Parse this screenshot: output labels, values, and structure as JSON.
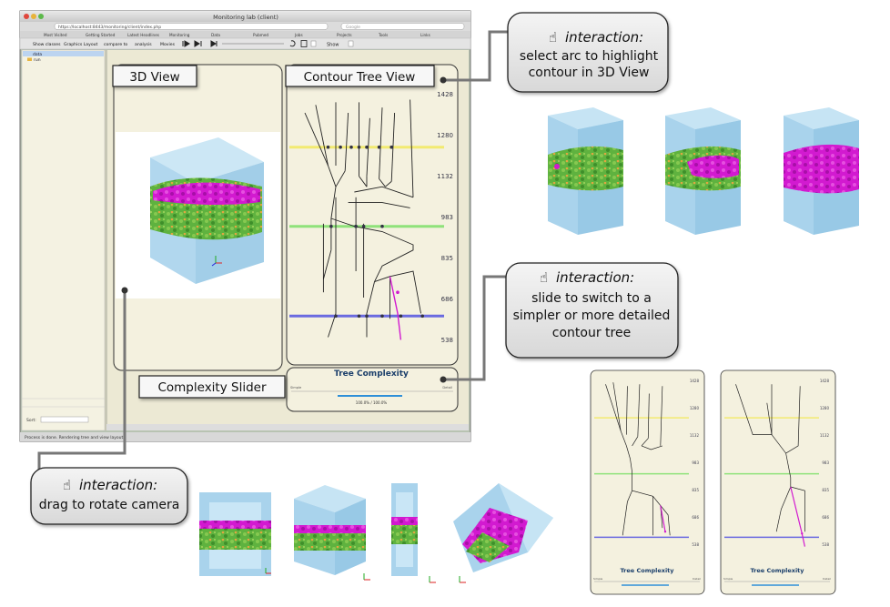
{
  "window": {
    "title": "Monitoring lab (client)",
    "url": "https://localhost:8443/monitoring/client/index.php",
    "search_placeholder": "Google",
    "bookmarks": [
      "Most Visited",
      "Getting Started",
      "Latest Headlines",
      "Monitoring",
      "Data",
      "Pubmed",
      "Jobs",
      "Projects",
      "Tools",
      "Links"
    ],
    "tabs": [
      "Show classes",
      "Graphics Layout",
      "compare to",
      "analysis",
      "Movies"
    ],
    "show_label": "Show",
    "status": "Process is done. Rendering tree and view layout",
    "tree_items": [
      "data",
      "run"
    ],
    "tree_field_label": "Sort:"
  },
  "panels": {
    "view3d_title": "3D View",
    "contour_title": "Contour Tree View",
    "slider_title": "Complexity Slider",
    "tree_complexity": "Tree Complexity",
    "slider_value_text": "100.0% / 100.0%",
    "slider_left": "Simple",
    "slider_right": "Detail",
    "axis_labels": [
      "1428",
      "1280",
      "1132",
      "983",
      "835",
      "686",
      "538"
    ]
  },
  "callouts": {
    "interaction_label": "interaction:",
    "arc_text": [
      "select arc to highlight",
      "contour in 3D View"
    ],
    "slide_text": [
      "slide to switch to a",
      "simpler or more detailed",
      "contour tree"
    ],
    "drag_text": [
      "drag to rotate camera"
    ]
  },
  "small_trees": {
    "title": "Tree Complexity",
    "axis_labels": [
      "1428",
      "1280",
      "1132",
      "983",
      "835",
      "686",
      "538"
    ],
    "slider_left": "Simple",
    "slider_right": "Detail"
  },
  "colors": {
    "cube": "#a9d3ec",
    "green": "#5fb23f",
    "magenta": "#d21ad0",
    "yellow_line": "#f2ea70",
    "green_line": "#8fe27a",
    "blue_line": "#6a6ae0",
    "panel_bg": "#f4f1df"
  },
  "icons": [
    "hand-pointer-icon",
    "play-icon",
    "step-icon",
    "skip-icon",
    "refresh-icon",
    "save-icon",
    "close-icon"
  ]
}
